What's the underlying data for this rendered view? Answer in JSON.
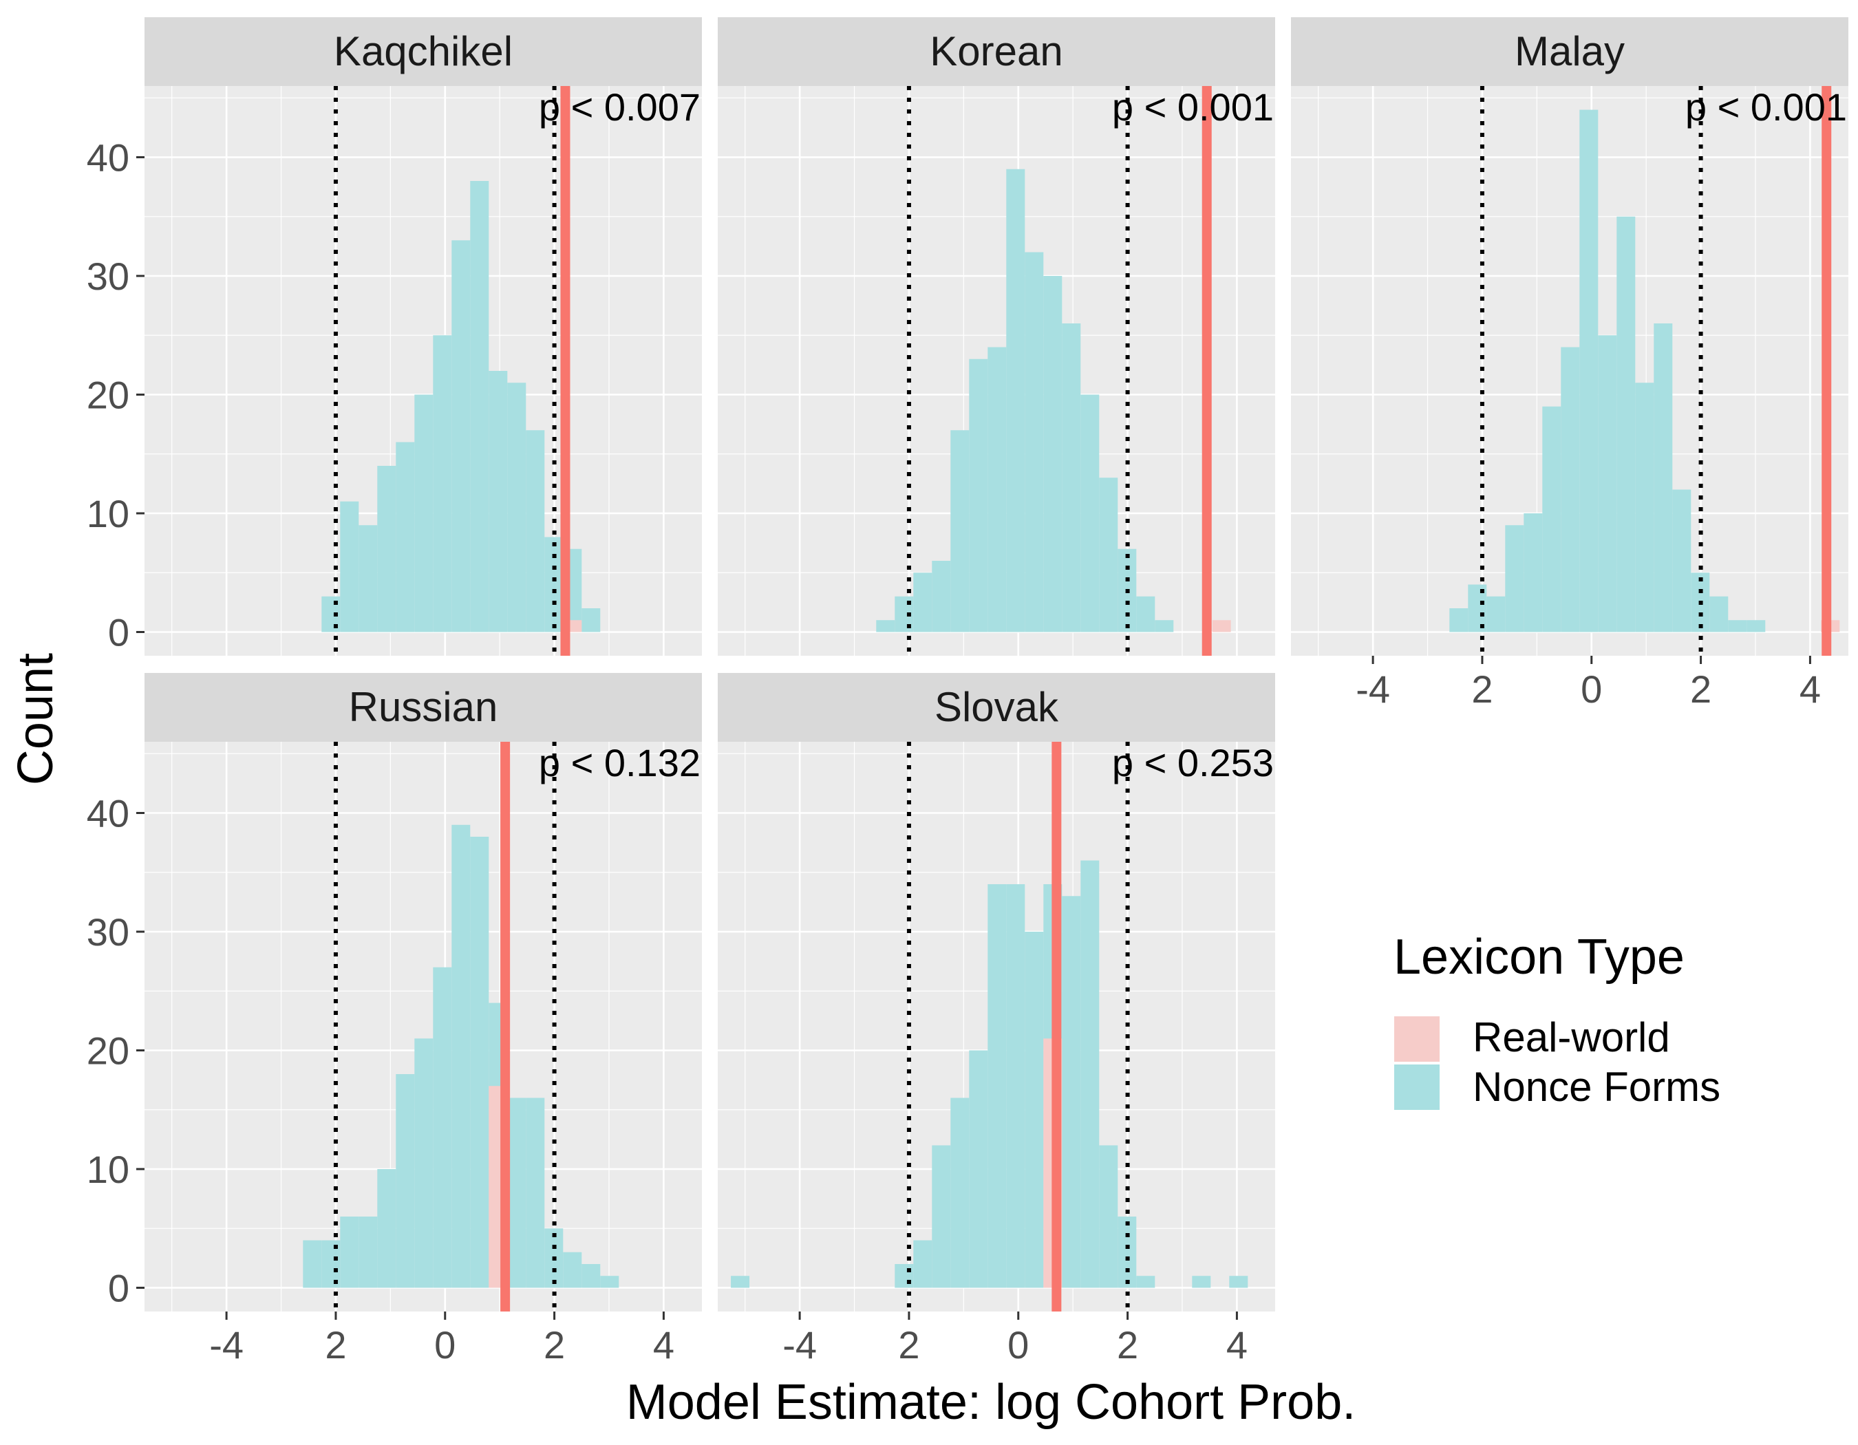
{
  "figure": {
    "xlabel": "Model Estimate: log Cohort Prob.",
    "ylabel": "Count"
  },
  "legend": {
    "title": "Lexicon Type",
    "items": [
      {
        "label": "Real-world",
        "color": "#F8766D"
      },
      {
        "label": "Nonce Forms",
        "color": "#00BFC4"
      }
    ]
  },
  "colors": {
    "panel_bg": "#EBEBEB",
    "strip_bg": "#D9D9D9",
    "grid": "#FFFFFF",
    "real_line": "#F8766D",
    "nonce_fill": "#A8DFE1",
    "real_fill": "#F6CCC9"
  },
  "chart_data": [
    {
      "type": "bar",
      "panel": "Kaqchikel",
      "annotation": "p < 0.007",
      "xlim": [
        -5.5,
        4.7
      ],
      "ylim": [
        -2,
        46
      ],
      "x_ticks": [
        "-4",
        "2",
        "0",
        "2",
        "4"
      ],
      "y_ticks": [
        "0",
        "10",
        "20",
        "30",
        "40"
      ],
      "bin_width": 0.34,
      "nonce_bins": {
        "x": [
          -2.26,
          -1.92,
          -1.58,
          -1.24,
          -0.9,
          -0.56,
          -0.22,
          0.12,
          0.46,
          0.8,
          1.14,
          1.48,
          1.82,
          2.16,
          2.5
        ],
        "counts": [
          3,
          11,
          9,
          14,
          16,
          20,
          25,
          33,
          38,
          22,
          21,
          17,
          8,
          7,
          2
        ]
      },
      "real_bins": {
        "x": [
          2.16
        ],
        "counts": [
          1
        ]
      },
      "real_value": 2.2,
      "dotted_lines": [
        -2,
        2
      ]
    },
    {
      "type": "bar",
      "panel": "Korean",
      "annotation": "p < 0.001",
      "xlim": [
        -5.5,
        4.7
      ],
      "ylim": [
        -2,
        46
      ],
      "x_ticks": [
        "-4",
        "2",
        "0",
        "2",
        "4"
      ],
      "y_ticks": [
        "0",
        "10",
        "20",
        "30",
        "40"
      ],
      "bin_width": 0.34,
      "nonce_bins": {
        "x": [
          -2.6,
          -2.26,
          -1.92,
          -1.58,
          -1.24,
          -0.9,
          -0.56,
          -0.22,
          0.12,
          0.46,
          0.8,
          1.14,
          1.48,
          1.82,
          2.16,
          2.5
        ],
        "counts": [
          1,
          3,
          5,
          6,
          17,
          23,
          24,
          39,
          32,
          30,
          26,
          20,
          13,
          7,
          3,
          1
        ]
      },
      "real_bins": {
        "x": [
          3.55
        ],
        "counts": [
          1
        ]
      },
      "real_value": 3.45,
      "dotted_lines": [
        -2,
        2
      ]
    },
    {
      "type": "bar",
      "panel": "Malay",
      "annotation": "p < 0.001",
      "xlim": [
        -5.5,
        4.7
      ],
      "ylim": [
        -2,
        46
      ],
      "x_ticks": [
        "-4",
        "2",
        "0",
        "2",
        "4"
      ],
      "y_ticks": [
        "0",
        "10",
        "20",
        "30",
        "40"
      ],
      "bin_width": 0.34,
      "nonce_bins": {
        "x": [
          -2.6,
          -2.26,
          -1.92,
          -1.58,
          -1.24,
          -0.9,
          -0.56,
          -0.22,
          0.12,
          0.46,
          0.8,
          1.14,
          1.48,
          1.82,
          2.16,
          2.5,
          2.84
        ],
        "counts": [
          2,
          4,
          3,
          9,
          10,
          19,
          24,
          44,
          25,
          35,
          21,
          26,
          12,
          5,
          3,
          1,
          1
        ]
      },
      "real_bins": {
        "x": [
          4.2
        ],
        "counts": [
          1
        ]
      },
      "real_value": 4.3,
      "dotted_lines": [
        -2,
        2
      ]
    },
    {
      "type": "bar",
      "panel": "Russian",
      "annotation": "p < 0.132",
      "xlim": [
        -5.5,
        4.7
      ],
      "ylim": [
        -2,
        46
      ],
      "x_ticks": [
        "-4",
        "2",
        "0",
        "2",
        "4"
      ],
      "y_ticks": [
        "0",
        "10",
        "20",
        "30",
        "40"
      ],
      "bin_width": 0.34,
      "nonce_bins": {
        "x": [
          -2.6,
          -2.26,
          -1.92,
          -1.58,
          -1.24,
          -0.9,
          -0.56,
          -0.22,
          0.12,
          0.46,
          0.8,
          1.14,
          1.48,
          1.82,
          2.16,
          2.5,
          2.84
        ],
        "counts": [
          4,
          4,
          6,
          6,
          10,
          18,
          21,
          27,
          39,
          38,
          24,
          16,
          16,
          5,
          3,
          2,
          1
        ]
      },
      "real_bins": {
        "x": [
          0.8
        ],
        "counts": [
          17
        ]
      },
      "real_value": 1.1,
      "dotted_lines": [
        -2,
        2
      ]
    },
    {
      "type": "bar",
      "panel": "Slovak",
      "annotation": "p < 0.253",
      "xlim": [
        -5.5,
        4.7
      ],
      "ylim": [
        -2,
        46
      ],
      "x_ticks": [
        "-4",
        "2",
        "0",
        "2",
        "4"
      ],
      "y_ticks": [
        "0",
        "10",
        "20",
        "30",
        "40"
      ],
      "bin_width": 0.34,
      "nonce_bins": {
        "x": [
          -5.26,
          -2.26,
          -1.92,
          -1.58,
          -1.24,
          -0.9,
          -0.56,
          -0.22,
          0.12,
          0.46,
          0.8,
          1.14,
          1.48,
          1.82,
          2.16,
          3.18,
          3.86
        ],
        "counts": [
          1,
          2,
          4,
          12,
          16,
          20,
          34,
          34,
          30,
          34,
          33,
          36,
          12,
          6,
          1,
          1,
          1
        ]
      },
      "real_bins": {
        "x": [
          0.46
        ],
        "counts": [
          21
        ]
      },
      "real_value": 0.7,
      "dotted_lines": [
        -2,
        2
      ]
    }
  ]
}
